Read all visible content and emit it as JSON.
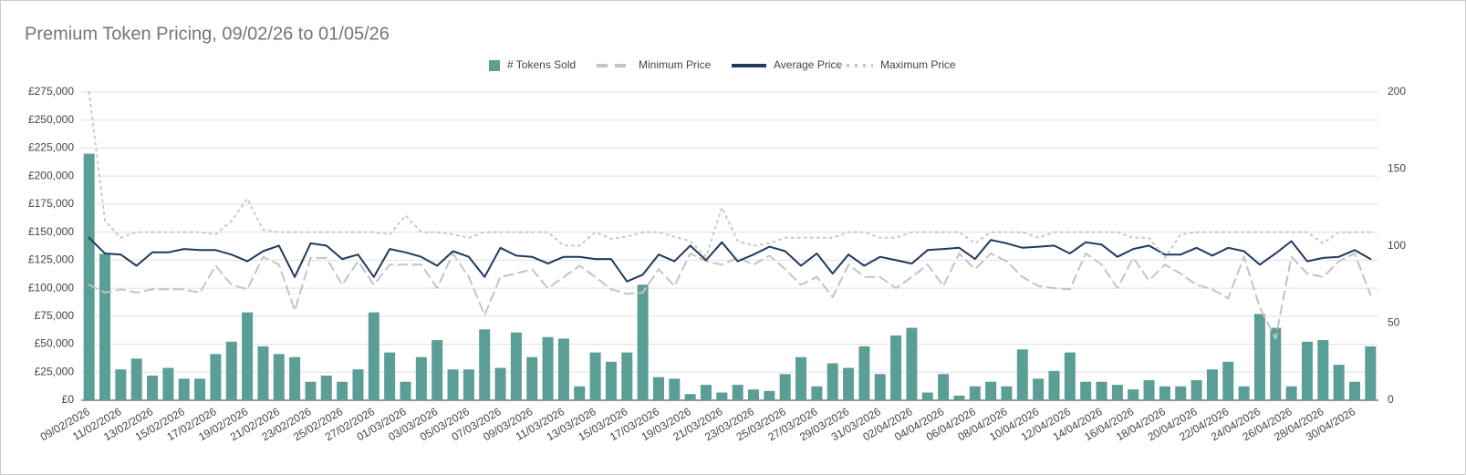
{
  "chart_data": {
    "type": "combo",
    "title": "Premium Token Pricing, 09/02/26 to 01/05/26",
    "categories": [
      "09/02/2026",
      null,
      "11/02/2026",
      null,
      "13/02/2026",
      null,
      "15/02/2026",
      null,
      "17/02/2026",
      null,
      "19/02/2026",
      null,
      "21/02/2026",
      null,
      "23/02/2026",
      null,
      "25/02/2026",
      null,
      "27/02/2026",
      null,
      "01/03/2026",
      null,
      "03/03/2026",
      null,
      "05/03/2026",
      null,
      "07/03/2026",
      null,
      "09/03/2026",
      null,
      "11/03/2026",
      null,
      "13/03/2026",
      null,
      "15/03/2026",
      null,
      "17/03/2026",
      null,
      "19/03/2026",
      null,
      "21/03/2026",
      null,
      "23/03/2026",
      null,
      "25/03/2026",
      null,
      "27/03/2026",
      null,
      "29/03/2026",
      null,
      "31/03/2026",
      null,
      "02/04/2026",
      null,
      "04/04/2026",
      null,
      "06/04/2026",
      null,
      "08/04/2026",
      null,
      "10/04/2026",
      null,
      "12/04/2026",
      null,
      "14/04/2026",
      null,
      "16/04/2026",
      null,
      "18/04/2026",
      null,
      "20/04/2026",
      null,
      "22/04/2026",
      null,
      "24/04/2026",
      null,
      "26/04/2026",
      null,
      "28/04/2026",
      null,
      "30/04/2026",
      null
    ],
    "series": [
      {
        "name": "# Tokens Sold",
        "type": "bar",
        "axis": "y2",
        "color": "#5a9e96",
        "values": [
          160,
          95,
          20,
          27,
          16,
          21,
          14,
          14,
          30,
          38,
          57,
          35,
          30,
          28,
          12,
          16,
          12,
          20,
          57,
          31,
          12,
          28,
          39,
          20,
          20,
          46,
          21,
          44,
          28,
          41,
          40,
          9,
          31,
          25,
          31,
          75,
          15,
          14,
          4,
          10,
          5,
          10,
          7,
          6,
          17,
          28,
          9,
          24,
          21,
          35,
          17,
          42,
          47,
          5,
          17,
          3,
          9,
          12,
          9,
          33,
          14,
          19,
          31,
          12,
          12,
          10,
          7,
          13,
          9,
          9,
          13,
          20,
          25,
          9,
          56,
          47,
          9,
          38,
          39,
          23,
          12,
          35
        ]
      },
      {
        "name": "Minimum Price",
        "type": "line",
        "style": "dashed",
        "color": "#c4c4c4",
        "values": [
          103000,
          96000,
          99000,
          96000,
          99000,
          99000,
          99000,
          96000,
          120000,
          103000,
          99000,
          128000,
          121000,
          80000,
          127000,
          127000,
          103000,
          124000,
          103000,
          121000,
          121000,
          121000,
          100000,
          131000,
          110000,
          76000,
          110000,
          113000,
          117000,
          100000,
          110000,
          120000,
          110000,
          99000,
          95000,
          96000,
          117000,
          102000,
          131000,
          124000,
          121000,
          127000,
          121000,
          129000,
          117000,
          103000,
          110000,
          92000,
          121000,
          110000,
          110000,
          100000,
          110000,
          121000,
          102000,
          131000,
          117000,
          131000,
          124000,
          110000,
          102000,
          100000,
          99000,
          131000,
          121000,
          100000,
          127000,
          107000,
          121000,
          113000,
          103000,
          99000,
          91000,
          128000,
          83000,
          55000,
          128000,
          113000,
          110000,
          124000,
          131000,
          94000
        ]
      },
      {
        "name": "Average Price",
        "type": "line",
        "style": "solid",
        "color": "#1f3a5f",
        "values": [
          145000,
          131000,
          130000,
          120000,
          132000,
          132000,
          135000,
          134000,
          134000,
          130000,
          124000,
          133000,
          138000,
          110000,
          140000,
          138000,
          126000,
          130000,
          110000,
          135000,
          132000,
          128000,
          120000,
          133000,
          128000,
          110000,
          136000,
          129000,
          128000,
          122000,
          128000,
          128000,
          126000,
          126000,
          106000,
          112000,
          130000,
          124000,
          138000,
          125000,
          141000,
          124000,
          130000,
          137000,
          133000,
          120000,
          131000,
          113000,
          130000,
          120000,
          128000,
          125000,
          122000,
          134000,
          135000,
          136000,
          126000,
          143000,
          140000,
          136000,
          137000,
          138000,
          131000,
          141000,
          139000,
          128000,
          135000,
          138000,
          130000,
          130000,
          136000,
          129000,
          136000,
          133000,
          121000,
          131000,
          142000,
          124000,
          127000,
          128000,
          134000,
          126000
        ]
      },
      {
        "name": "Maximum Price",
        "type": "line",
        "style": "dotted",
        "color": "#c8c8c8",
        "values": [
          275000,
          160000,
          145000,
          150000,
          150000,
          150000,
          150000,
          150000,
          148000,
          160000,
          180000,
          152000,
          150000,
          150000,
          150000,
          150000,
          150000,
          150000,
          150000,
          148000,
          165000,
          150000,
          150000,
          148000,
          145000,
          150000,
          150000,
          150000,
          150000,
          150000,
          138000,
          138000,
          150000,
          144000,
          146000,
          150000,
          150000,
          146000,
          142000,
          128000,
          172000,
          142000,
          138000,
          140000,
          145000,
          145000,
          145000,
          145000,
          150000,
          150000,
          145000,
          145000,
          150000,
          150000,
          150000,
          150000,
          140000,
          150000,
          150000,
          150000,
          145000,
          150000,
          150000,
          150000,
          150000,
          150000,
          145000,
          145000,
          127000,
          148000,
          150000,
          150000,
          150000,
          150000,
          150000,
          150000,
          150000,
          150000,
          140000,
          150000,
          150000,
          150000
        ]
      }
    ],
    "ylim": [
      0,
      275000
    ],
    "yticks": [
      {
        "value": 0,
        "label": "£0"
      },
      {
        "value": 25000,
        "label": "£25,000"
      },
      {
        "value": 50000,
        "label": "£50,000"
      },
      {
        "value": 75000,
        "label": "£75,000"
      },
      {
        "value": 100000,
        "label": "£100,000"
      },
      {
        "value": 125000,
        "label": "£125,000"
      },
      {
        "value": 150000,
        "label": "£150,000"
      },
      {
        "value": 175000,
        "label": "£175,000"
      },
      {
        "value": 200000,
        "label": "£200,000"
      },
      {
        "value": 225000,
        "label": "£225,000"
      },
      {
        "value": 250000,
        "label": "£250,000"
      },
      {
        "value": 275000,
        "label": "£275,000"
      }
    ],
    "y2lim": [
      0,
      200
    ],
    "y2ticks": [
      0,
      50,
      100,
      150,
      200
    ],
    "grid": true,
    "legend": "top"
  }
}
